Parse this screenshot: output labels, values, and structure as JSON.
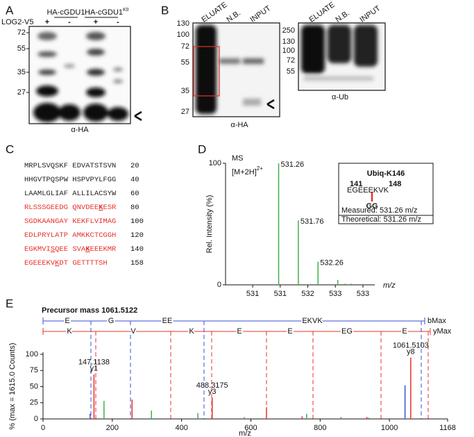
{
  "panel_a": {
    "label": "A",
    "construct_1": "HA-cGDU1",
    "construct_2": "HA-cGDU1",
    "construct_2_sup": "K0",
    "treatment": "LOG2-V5",
    "lanes": [
      "+",
      "-",
      "+",
      "-"
    ],
    "markers": [
      72,
      55,
      35,
      27
    ],
    "antibody": "α-HA"
  },
  "panel_b": {
    "label": "B",
    "blots": [
      {
        "lanes": [
          "ELUATE",
          "N.B.",
          "INPUT"
        ],
        "markers": [
          130,
          100,
          72,
          55,
          35,
          27
        ],
        "antibody": "α-HA"
      },
      {
        "lanes": [
          "ELUATE",
          "N.B.",
          "INPUT"
        ],
        "markers": [
          250,
          130,
          100,
          72,
          55
        ],
        "antibody": "α-Ub"
      }
    ]
  },
  "panel_c": {
    "label": "C",
    "lines": [
      {
        "segments": [
          {
            "text": "MRPLSVQSKF EDVATSTSVN",
            "style": "plain"
          }
        ],
        "number": 20,
        "color": "#222222"
      },
      {
        "segments": [
          {
            "text": "HHGVTPQSPW HSPVPYLFGG",
            "style": "plain"
          }
        ],
        "number": 40,
        "color": "#222222"
      },
      {
        "segments": [
          {
            "text": "LAAMLGLIAF ALLILACSYW",
            "style": "plain"
          }
        ],
        "number": 60,
        "color": "#222222"
      },
      {
        "segments": [
          {
            "text": "RLSSSGEEDG QNVDEE",
            "style": "plain"
          },
          {
            "text": "K",
            "style": "bold-underline"
          },
          {
            "text": "ESR",
            "style": "plain"
          }
        ],
        "number": 80,
        "color": "#e8302a"
      },
      {
        "segments": [
          {
            "text": "SGDKAANGAY KEKFLVIMAG",
            "style": "plain"
          }
        ],
        "number": 100,
        "color": "#e8302a"
      },
      {
        "segments": [
          {
            "text": "EDLPRYLATP AMKKCTCGGH",
            "style": "plain"
          }
        ],
        "number": 120,
        "color": "#e8302a"
      },
      {
        "segments": [
          {
            "text": "EGKMVI",
            "style": "plain"
          },
          {
            "text": "S",
            "style": "underline"
          },
          {
            "text": "QEE SVA",
            "style": "plain"
          },
          {
            "text": "K",
            "style": "bold-underline"
          },
          {
            "text": "EEEKMR",
            "style": "plain"
          }
        ],
        "number": 140,
        "color": "#e8302a"
      },
      {
        "segments": [
          {
            "text": "EGEEEKV",
            "style": "plain"
          },
          {
            "text": "K",
            "style": "underline"
          },
          {
            "text": "DT GETTTTSH",
            "style": "plain"
          }
        ],
        "number": 158,
        "color": "#e8302a"
      }
    ]
  },
  "chart_data": [
    {
      "type": "bar",
      "label": "D",
      "annotation_1": "MS",
      "annotation_2": "[M+2H]",
      "annotation_2_sup": "2+",
      "ylabel": "Rel. Intensity (%)",
      "xlabel": "m/z",
      "x": [
        531.26,
        531.76,
        532.26,
        532.76,
        532.95,
        533.1
      ],
      "values": [
        100,
        53,
        19,
        4,
        1,
        1
      ],
      "x_labels": [
        "531.26",
        "531.76",
        "532.26",
        null,
        null,
        null
      ],
      "color": "#3cb04a",
      "xlim": [
        530.0,
        533.7
      ],
      "xticks": [
        {
          "value": 530.6,
          "label": "531"
        },
        {
          "value": 531.3,
          "label": "531"
        },
        {
          "value": 532.0,
          "label": "532"
        },
        {
          "value": 532.7,
          "label": "533"
        },
        {
          "value": 533.4,
          "label": "533"
        }
      ],
      "ylim": [
        0,
        100
      ],
      "yticks": [
        0,
        100
      ],
      "inset": {
        "title": "Ubiq-K146",
        "start": 141,
        "end": 148,
        "peptide": "EGEEEKVK",
        "modification": "GG",
        "measured": "Measured:  531.26 m/z",
        "theoretical": "Theoretical:  531.26 m/z"
      }
    },
    {
      "type": "bar",
      "label": "E",
      "title": "Precursor mass 1061.5122",
      "ylabel": "% (max = 1615.0 Counts)",
      "xlabel": "m/z",
      "series": [
        {
          "color": "#e8302a",
          "x": [
            147.1138,
            257,
            488.3175,
            645,
            748,
            935,
            1061.5103
          ],
          "values": [
            69,
            30,
            33,
            18,
            4,
            3,
            95
          ],
          "x_labels": [
            "147.1138",
            null,
            "488.3175",
            null,
            null,
            null,
            "1061.5103"
          ],
          "ion_labels": [
            "y1",
            null,
            "y3",
            null,
            null,
            null,
            "y8"
          ]
        },
        {
          "color": "#3a4fd8",
          "x": [
            136,
            1045
          ],
          "values": [
            8,
            52
          ]
        },
        {
          "color": "#3cb04a",
          "x": [
            176,
            313,
            447,
            581,
            761,
            860,
            940
          ],
          "values": [
            28,
            13,
            9,
            3,
            8,
            3,
            2
          ]
        }
      ],
      "xlim": [
        0,
        1168
      ],
      "xticks": [
        0,
        200,
        400,
        600,
        800,
        1000,
        1168
      ],
      "ylim": [
        0,
        100
      ],
      "yticks": [
        0,
        25,
        50,
        75,
        100
      ],
      "b_ladder": [
        "E",
        "G",
        "EE",
        "EKVK"
      ],
      "b_end": "bMax",
      "y_ladder": [
        "K",
        "V",
        "K",
        "E",
        "E",
        "EG",
        "E"
      ],
      "y_end": "yMax"
    }
  ]
}
